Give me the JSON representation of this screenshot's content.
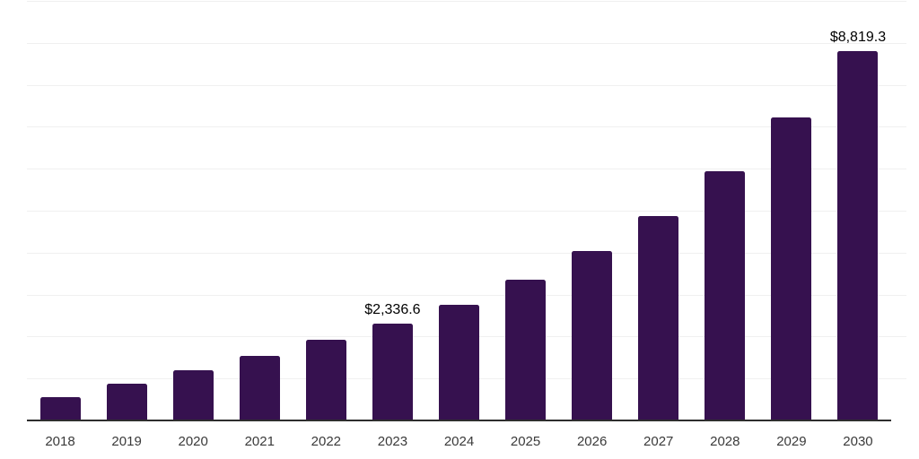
{
  "chart": {
    "bar_color": "#36114f",
    "gridline_color": "#f0f0f0",
    "axis_line_color": "#2e2e2e",
    "data_label_color": "#000000",
    "tick_label_color": "#3a3a3a",
    "background_color": "#ffffff"
  },
  "chart_data": {
    "type": "bar",
    "title": "",
    "xlabel": "",
    "ylabel": "",
    "categories": [
      "2018",
      "2019",
      "2020",
      "2021",
      "2022",
      "2023",
      "2024",
      "2025",
      "2026",
      "2027",
      "2028",
      "2029",
      "2030"
    ],
    "values": [
      580,
      900,
      1220,
      1560,
      1950,
      2336.6,
      2780,
      3380,
      4060,
      4900,
      5960,
      7250,
      8819.3
    ],
    "data_labels": {
      "2023": "$2,336.6",
      "2030": "$8,819.3"
    },
    "ylim": [
      0,
      10000
    ],
    "gridline_step": 1000,
    "grid": true,
    "legend": false,
    "y_axis_labels_visible": false
  }
}
